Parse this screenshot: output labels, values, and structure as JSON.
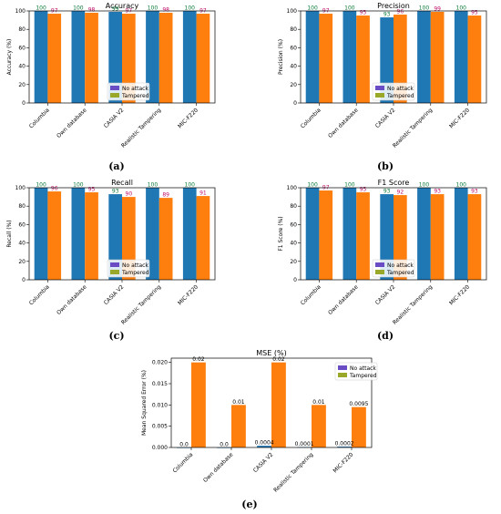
{
  "figure": {
    "panel_labels": [
      "(a)",
      "(b)",
      "(c)",
      "(d)",
      "(e)"
    ]
  },
  "colors": {
    "no_attack": "#1f77b4",
    "tampered": "#ff7f0e",
    "mse_no_attack": "#1f77b4",
    "mse_tampered": "#ff7f0e",
    "legend_no_attack": "#6a4cc4",
    "legend_tampered": "#9aa82a",
    "top_label_no_attack": "#0a7a3a",
    "top_label_tampered": "#c0106a"
  },
  "chart_data": [
    {
      "type": "bar",
      "title": "Accuracy",
      "ylabel": "Accuracy (%)",
      "xlabel": "",
      "categories": [
        "Columbia",
        "Own database",
        "CASIA V2",
        "Realistic Tampering",
        "MIC-F220"
      ],
      "series": [
        {
          "name": "No attack",
          "values": [
            100,
            100,
            99,
            100,
            100
          ],
          "labels": [
            "100",
            "100",
            "99",
            "100",
            "100"
          ]
        },
        {
          "name": "Tampered",
          "values": [
            97,
            98,
            97,
            98,
            97
          ],
          "labels": [
            "97",
            "98",
            "97",
            "98",
            "97"
          ]
        }
      ],
      "ylim": [
        0,
        100
      ],
      "yticks": [
        "0",
        "20",
        "40",
        "60",
        "80",
        "100"
      ],
      "legend": "lower-right"
    },
    {
      "type": "bar",
      "title": "Precision",
      "ylabel": "Precision (%)",
      "xlabel": "",
      "categories": [
        "Columbia",
        "Own database",
        "CASIA V2",
        "Realistic Tampering",
        "MIC-F220"
      ],
      "series": [
        {
          "name": "No attack",
          "values": [
            100,
            100,
            93,
            100,
            100
          ],
          "labels": [
            "100",
            "100",
            "93",
            "100",
            "100"
          ]
        },
        {
          "name": "Tampered",
          "values": [
            97,
            95,
            96,
            99,
            95
          ],
          "labels": [
            "97",
            "95",
            "96",
            "99",
            "95"
          ]
        }
      ],
      "ylim": [
        0,
        100
      ],
      "yticks": [
        "0",
        "20",
        "40",
        "60",
        "80",
        "100"
      ],
      "legend": "lower-right"
    },
    {
      "type": "bar",
      "title": "Recall",
      "ylabel": "Recall (%)",
      "xlabel": "",
      "categories": [
        "Columbia",
        "Own database",
        "CASIA V2",
        "Realistic Tampering",
        "MIC-F220"
      ],
      "series": [
        {
          "name": "No attack",
          "values": [
            100,
            100,
            93,
            100,
            100
          ],
          "labels": [
            "100",
            "100",
            "93",
            "100",
            "100"
          ]
        },
        {
          "name": "Tampered",
          "values": [
            96,
            95,
            90,
            89,
            91
          ],
          "labels": [
            "96",
            "95",
            "90",
            "89",
            "91"
          ]
        }
      ],
      "ylim": [
        0,
        100
      ],
      "yticks": [
        "0",
        "20",
        "40",
        "60",
        "80",
        "100"
      ],
      "legend": "lower-right"
    },
    {
      "type": "bar",
      "title": "F1 Score",
      "ylabel": "F1 Score (%)",
      "xlabel": "",
      "categories": [
        "Columbia",
        "Own database",
        "CASIA V2",
        "Realistic Tampering",
        "MIC-F220"
      ],
      "series": [
        {
          "name": "No attack",
          "values": [
            100,
            100,
            93,
            100,
            100
          ],
          "labels": [
            "100",
            "100",
            "93",
            "100",
            "100"
          ]
        },
        {
          "name": "Tampered",
          "values": [
            97,
            95,
            92,
            93,
            93
          ],
          "labels": [
            "97",
            "95",
            "92",
            "93",
            "93"
          ]
        }
      ],
      "ylim": [
        0,
        100
      ],
      "yticks": [
        "0",
        "20",
        "40",
        "60",
        "80",
        "100"
      ],
      "legend": "lower-right"
    },
    {
      "type": "bar",
      "title": "MSE (%)",
      "ylabel": "Mean Squared Error (%)",
      "xlabel": "",
      "categories": [
        "Columbia",
        "Own database",
        "CASIA V2",
        "Realistic Tampering",
        "MIC-F220"
      ],
      "series": [
        {
          "name": "No attack",
          "values": [
            0.0,
            0.0,
            0.0004,
            0.0001,
            0.0002
          ],
          "labels": [
            "0.0",
            "0.0",
            "0.0004",
            "0.0001",
            "0.0002"
          ]
        },
        {
          "name": "Tampered",
          "values": [
            0.02,
            0.01,
            0.02,
            0.01,
            0.0095
          ],
          "labels": [
            "0.02",
            "0.01",
            "0.02",
            "0.01",
            "0.0095"
          ]
        }
      ],
      "ylim": [
        0,
        0.021
      ],
      "yticks": [
        "0.000",
        "0.005",
        "0.010",
        "0.015",
        "0.020"
      ],
      "ytick_values": [
        0,
        0.005,
        0.01,
        0.015,
        0.02
      ],
      "legend": "top-right"
    }
  ]
}
